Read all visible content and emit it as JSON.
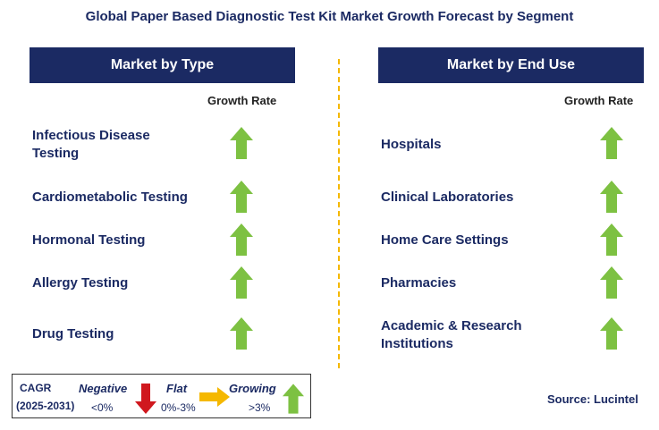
{
  "title": "Global Paper Based Diagnostic Test Kit Market Growth Forecast by Segment",
  "left_panel": {
    "header": "Market by Type",
    "growth_label": "Growth Rate",
    "rows": [
      {
        "label_line1": "Infectious Disease",
        "label_line2": "Testing",
        "trend": "growing"
      },
      {
        "label_line1": "Cardiometabolic Testing",
        "label_line2": "",
        "trend": "growing"
      },
      {
        "label_line1": "Hormonal Testing",
        "label_line2": "",
        "trend": "growing"
      },
      {
        "label_line1": "Allergy Testing",
        "label_line2": "",
        "trend": "growing"
      },
      {
        "label_line1": "Drug Testing",
        "label_line2": "",
        "trend": "growing"
      }
    ]
  },
  "right_panel": {
    "header": "Market by End Use",
    "growth_label": "Growth Rate",
    "rows": [
      {
        "label_line1": "Hospitals",
        "label_line2": "",
        "trend": "growing"
      },
      {
        "label_line1": "Clinical Laboratories",
        "label_line2": "",
        "trend": "growing"
      },
      {
        "label_line1": "Home Care Settings",
        "label_line2": "",
        "trend": "growing"
      },
      {
        "label_line1": "Pharmacies",
        "label_line2": "",
        "trend": "growing"
      },
      {
        "label_line1": "Academic & Research",
        "label_line2": "Institutions",
        "trend": "growing"
      }
    ]
  },
  "legend": {
    "cagr_label": "CAGR",
    "period": "(2025-2031)",
    "negative_label": "Negative",
    "negative_value": "<0%",
    "flat_label": "Flat",
    "flat_value": "0%-3%",
    "growing_label": "Growing",
    "growing_value": ">3%"
  },
  "source": "Source: Lucintel",
  "colors": {
    "header_bg": "#1b2a63",
    "growing": "#7dc142",
    "negative": "#d0181e",
    "flat": "#f5b800"
  }
}
